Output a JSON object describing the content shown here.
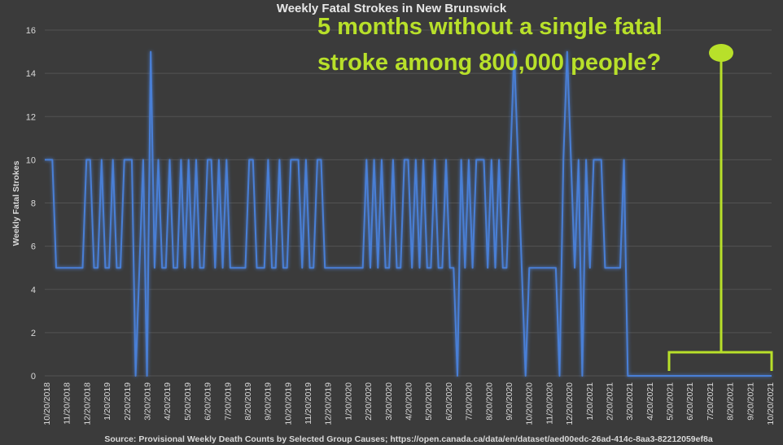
{
  "chart_data": {
    "type": "line",
    "title": "Weekly Fatal Strokes in New Brunswick",
    "ylabel": "Weekly Fatal Strokes",
    "xlabel": "",
    "ylim": [
      0,
      16
    ],
    "yticks": [
      "0",
      "2",
      "4",
      "6",
      "8",
      "10",
      "12",
      "14",
      "16"
    ],
    "grid": true,
    "legend": "none",
    "x_tick_labels": [
      "10/20/2018",
      "11/20/2018",
      "12/20/2018",
      "1/20/2019",
      "2/20/2019",
      "3/20/2019",
      "4/20/2019",
      "5/20/2019",
      "6/20/2019",
      "7/20/2019",
      "8/20/2019",
      "9/20/2019",
      "10/20/2019",
      "11/20/2019",
      "12/20/2019",
      "1/20/2020",
      "2/20/2020",
      "3/20/2020",
      "4/20/2020",
      "5/20/2020",
      "6/20/2020",
      "7/20/2020",
      "8/20/2020",
      "9/20/2020",
      "10/20/2020",
      "11/20/2020",
      "12/20/2020",
      "1/20/2021",
      "2/20/2021",
      "3/20/2021",
      "4/20/2021",
      "5/20/2021",
      "6/20/2021",
      "7/20/2021",
      "8/20/2021",
      "9/20/2021",
      "10/20/2021"
    ],
    "series": [
      {
        "color": "#4a7fd6",
        "values": [
          10,
          10,
          10,
          5,
          5,
          5,
          5,
          5,
          5,
          5,
          5,
          10,
          10,
          5,
          5,
          10,
          5,
          5,
          10,
          5,
          5,
          10,
          10,
          10,
          0,
          5,
          10,
          0,
          15,
          5,
          10,
          5,
          5,
          10,
          5,
          5,
          10,
          5,
          10,
          5,
          10,
          5,
          5,
          10,
          10,
          5,
          10,
          5,
          10,
          5,
          5,
          5,
          5,
          5,
          10,
          10,
          5,
          5,
          5,
          10,
          5,
          5,
          10,
          5,
          5,
          10,
          10,
          10,
          5,
          10,
          5,
          5,
          10,
          10,
          5,
          5,
          5,
          5,
          5,
          5,
          5,
          5,
          5,
          5,
          5,
          10,
          5,
          10,
          5,
          10,
          5,
          5,
          10,
          5,
          5,
          10,
          10,
          5,
          10,
          5,
          10,
          5,
          5,
          10,
          5,
          5,
          10,
          5,
          5,
          0,
          10,
          5,
          10,
          5,
          10,
          10,
          10,
          5,
          10,
          5,
          10,
          5,
          5,
          10,
          15,
          10,
          5,
          0,
          5,
          5,
          5,
          5,
          5,
          5,
          5,
          5,
          0,
          10,
          15,
          10,
          5,
          10,
          0,
          10,
          5,
          10,
          10,
          10,
          5,
          5,
          5,
          5,
          5,
          10,
          0,
          0,
          0,
          0,
          0,
          0,
          0,
          0,
          0,
          0,
          0,
          0,
          0,
          0,
          0,
          0,
          0,
          0,
          0,
          0,
          0,
          0,
          0,
          0,
          0,
          0,
          0,
          0,
          0,
          0,
          0,
          0,
          0,
          0,
          0,
          0,
          0,
          0,
          0
        ]
      }
    ],
    "annotation": {
      "line1": "5 months without a single fatal",
      "line2": "stroke among 800,000 people?",
      "color": "#b8e02a"
    },
    "source": "Source: Provisional Weekly Death Counts by Selected Group Causes; https://open.canada.ca/data/en/dataset/aed00edc-26ad-414c-8aa3-82212059ef8a"
  }
}
